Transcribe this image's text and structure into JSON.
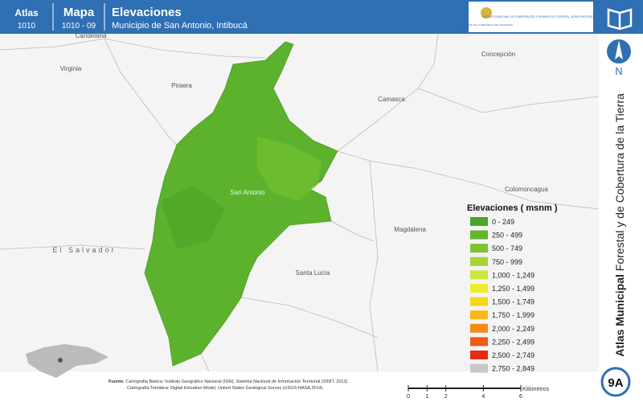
{
  "header": {
    "atlas_label": "Atlas",
    "atlas_number": "1010",
    "map_label": "Mapa",
    "map_number": "1010 - 09",
    "title": "Elevaciones",
    "subtitle": "Municipio de San Antonio, Intibucá",
    "logo_left": "GOBIERNO DE LA REPÚBLICA DE HONDURAS",
    "logo_right": "INSTITUTO NACIONAL DE CONSERVACIÓN Y DESARROLLO FORESTAL, ÁREAS PROTEGIDAS Y VIDA SILVESTRE"
  },
  "places": [
    "Candelaria",
    "Virginia",
    "Piraera",
    "Camasca",
    "Concepción",
    "Colomoncagua",
    "Magdalena",
    "Santa Lucía",
    "San Antonio",
    "El Salvador"
  ],
  "legend": {
    "title": "Elevaciones ( msnm )",
    "items": [
      {
        "label": "0 - 249",
        "color": "#4aa42a"
      },
      {
        "label": "250 - 499",
        "color": "#62b52c"
      },
      {
        "label": "500 - 749",
        "color": "#7cc42e"
      },
      {
        "label": "750 - 999",
        "color": "#a6d336"
      },
      {
        "label": "1,000 - 1,249",
        "color": "#cde43c"
      },
      {
        "label": "1,250 - 1,499",
        "color": "#ecec2e"
      },
      {
        "label": "1,500 - 1,749",
        "color": "#f6d81c"
      },
      {
        "label": "1,750 - 1,999",
        "color": "#f8b71a"
      },
      {
        "label": "2,000 - 2,249",
        "color": "#f48a16"
      },
      {
        "label": "2,250 - 2,499",
        "color": "#ef5a15"
      },
      {
        "label": "2,500 - 2,749",
        "color": "#e52b14"
      },
      {
        "label": "2,750 - 2,849",
        "color": "#c8c8c8"
      }
    ]
  },
  "sidebar": {
    "north": "N",
    "atlas": "Atlas Municipal",
    "subject": "Forestal y de Cobertura de la Tierra",
    "code": "9A"
  },
  "footer": {
    "source_label": "Fuente:",
    "source_1": "Cartografía Básica: Instituto Geográfico Nacional (IGN), Sistema Nacional de Información Territorial (SINIT, 2013)",
    "source_2": "Cartografía Temática: Digital Elevation Model, United States Geological Survey (USGS-NASA,2014)"
  },
  "scale": {
    "ticks": [
      0,
      1,
      2,
      4,
      6
    ],
    "unit": "Kilómetros"
  }
}
